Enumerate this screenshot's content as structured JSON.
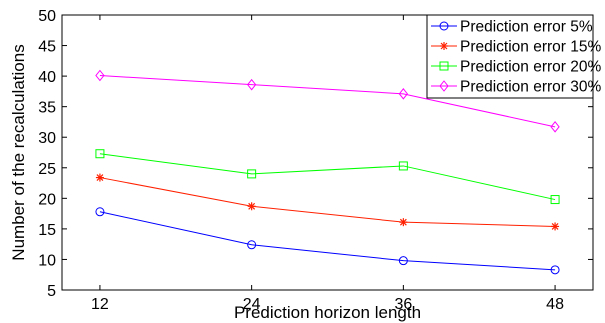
{
  "chart_data": {
    "type": "line",
    "title": "",
    "xlabel": "Prediction horizon length",
    "ylabel": "Number of the recalculations",
    "x": [
      12,
      24,
      36,
      48
    ],
    "x_ticks": [
      "12",
      "24",
      "36",
      "48"
    ],
    "xlim": [
      9,
      51
    ],
    "ylim": [
      5,
      50
    ],
    "y_ticks": [
      "5",
      "10",
      "15",
      "20",
      "25",
      "30",
      "35",
      "40",
      "45",
      "50"
    ],
    "grid": false,
    "legend_position": "top-right",
    "series": [
      {
        "name": "Prediction error 5%",
        "color": "#0000ff",
        "marker": "circle",
        "values": [
          17.8,
          12.4,
          9.8,
          8.3
        ]
      },
      {
        "name": "Prediction error 15%",
        "color": "#ff2000",
        "marker": "star",
        "values": [
          23.4,
          18.7,
          16.1,
          15.4
        ]
      },
      {
        "name": "Prediction error 20%",
        "color": "#00ff00",
        "marker": "square",
        "values": [
          27.3,
          24.0,
          25.3,
          19.8
        ]
      },
      {
        "name": "Prediction error 30%",
        "color": "#ff00ff",
        "marker": "diamond",
        "values": [
          40.1,
          38.6,
          37.1,
          31.7
        ]
      }
    ]
  }
}
